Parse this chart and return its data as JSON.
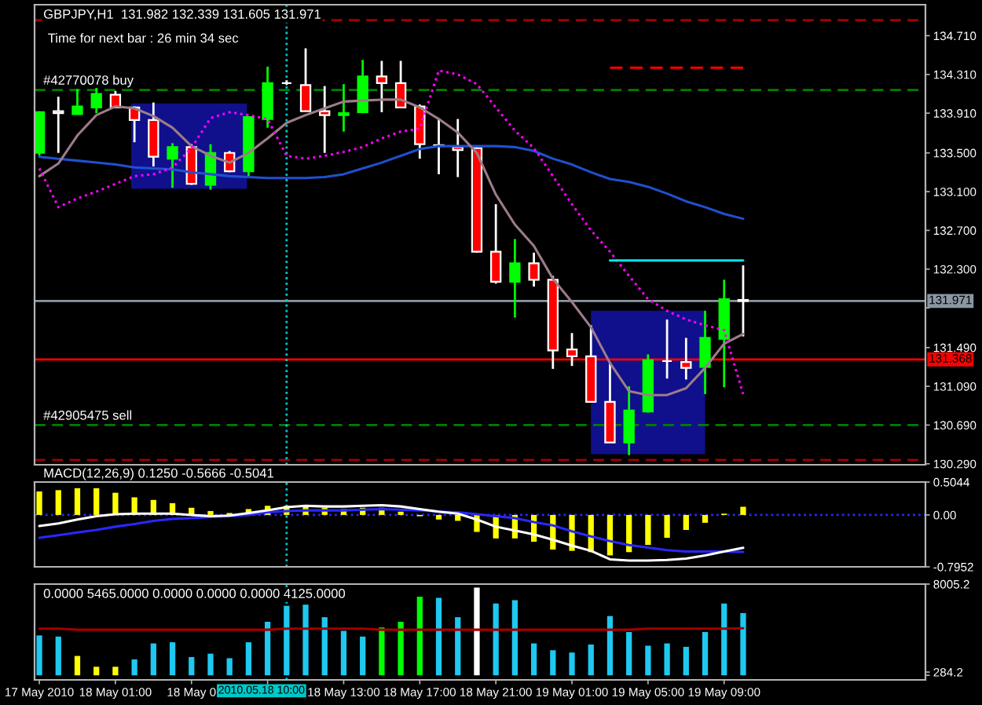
{
  "chart_data": [
    {
      "type": "candlestick",
      "title": "GBPJPY,H1  131.982 132.339 131.605 131.971",
      "subtitle": "Time for next bar : 26 min 34 sec",
      "x": [
        "2010-05-17T21:00",
        "2010-05-17T22:00",
        "2010-05-17T23:00",
        "2010-05-18T00:00",
        "2010-05-18T01:00",
        "2010-05-18T02:00",
        "2010-05-18T03:00",
        "2010-05-18T04:00",
        "2010-05-18T05:00",
        "2010-05-18T06:00",
        "2010-05-18T07:00",
        "2010-05-18T08:00",
        "2010-05-18T09:00",
        "2010-05-18T10:00",
        "2010-05-18T11:00",
        "2010-05-18T12:00",
        "2010-05-18T13:00",
        "2010-05-18T14:00",
        "2010-05-18T15:00",
        "2010-05-18T16:00",
        "2010-05-18T17:00",
        "2010-05-18T18:00",
        "2010-05-18T19:00",
        "2010-05-18T20:00",
        "2010-05-18T21:00",
        "2010-05-18T22:00",
        "2010-05-18T23:00",
        "2010-05-19T00:00",
        "2010-05-19T01:00",
        "2010-05-19T02:00",
        "2010-05-19T03:00",
        "2010-05-19T04:00",
        "2010-05-19T05:00",
        "2010-05-19T06:00",
        "2010-05-19T07:00",
        "2010-05-19T08:00",
        "2010-05-19T09:00",
        "2010-05-19T10:00"
      ],
      "ohlc": [
        [
          133.5,
          133.93,
          133.47,
          133.92
        ],
        [
          133.93,
          134.08,
          133.5,
          133.91
        ],
        [
          133.9,
          134.16,
          133.9,
          133.98
        ],
        [
          133.97,
          134.17,
          133.91,
          134.11
        ],
        [
          134.1,
          134.14,
          133.96,
          133.97
        ],
        [
          133.97,
          133.98,
          133.61,
          133.84
        ],
        [
          133.84,
          134.02,
          133.36,
          133.46
        ],
        [
          133.44,
          133.6,
          133.14,
          133.56
        ],
        [
          133.56,
          133.59,
          133.17,
          133.18
        ],
        [
          133.17,
          133.59,
          133.12,
          133.5
        ],
        [
          133.5,
          133.52,
          133.3,
          133.31
        ],
        [
          133.31,
          133.88,
          133.26,
          133.87
        ],
        [
          133.85,
          134.39,
          133.76,
          134.22
        ],
        [
          134.22,
          134.25,
          134.2,
          134.22
        ],
        [
          134.2,
          134.58,
          133.93,
          133.93
        ],
        [
          133.93,
          134.19,
          133.5,
          133.89
        ],
        [
          133.89,
          134.21,
          133.72,
          133.91
        ],
        [
          133.92,
          134.46,
          133.91,
          134.29
        ],
        [
          134.29,
          134.45,
          133.92,
          134.22
        ],
        [
          134.22,
          134.45,
          133.96,
          133.97
        ],
        [
          133.98,
          134.0,
          133.44,
          133.59
        ],
        [
          133.58,
          133.85,
          133.28,
          133.57
        ],
        [
          133.56,
          133.85,
          133.25,
          133.53
        ],
        [
          133.55,
          133.57,
          132.47,
          132.48
        ],
        [
          132.48,
          132.97,
          132.15,
          132.17
        ],
        [
          132.17,
          132.61,
          131.8,
          132.36
        ],
        [
          132.36,
          132.47,
          132.12,
          132.19
        ],
        [
          132.19,
          132.23,
          131.27,
          131.46
        ],
        [
          131.47,
          131.64,
          131.3,
          131.4
        ],
        [
          131.4,
          131.72,
          130.93,
          130.93
        ],
        [
          130.93,
          131.34,
          130.51,
          130.51
        ],
        [
          130.51,
          131.09,
          130.38,
          130.84
        ],
        [
          130.83,
          131.42,
          130.82,
          131.36
        ],
        [
          131.35,
          131.78,
          131.17,
          131.35
        ],
        [
          131.34,
          131.59,
          131.16,
          131.28
        ],
        [
          131.29,
          131.87,
          131.01,
          131.59
        ],
        [
          131.58,
          132.19,
          131.08,
          131.99
        ],
        [
          131.982,
          132.339,
          131.605,
          131.971
        ]
      ],
      "colors": [
        "#00ff00",
        "#ff0000",
        "#00ff00",
        "#00ff00",
        "#ff0000",
        "#ff0000",
        "#ff0000",
        "#00ff00",
        "#ff0000",
        "#00ff00",
        "#ff0000",
        "#00ff00",
        "#00ff00",
        "#ffffff",
        "#ff0000",
        "#ff0000",
        "#00ff00",
        "#00ff00",
        "#ff0000",
        "#ff0000",
        "#ff0000",
        "#ffffff",
        "#ff0000",
        "#ff0000",
        "#ff0000",
        "#00ff00",
        "#ff0000",
        "#ff0000",
        "#ff0000",
        "#ff0000",
        "#ff0000",
        "#00ff00",
        "#00ff00",
        "#ffffff",
        "#ff0000",
        "#00ff00",
        "#00ff00",
        "#ffffff"
      ],
      "series": [
        {
          "type": "area",
          "x": [
            "2010-05-18T01:50",
            "2010-05-18T07:55"
          ],
          "values": [
            null,
            null
          ],
          "lower": [
            133.13,
            133.13
          ],
          "upper": [
            134.01,
            134.01
          ],
          "color": "#10108c"
        },
        {
          "type": "area",
          "x": [
            "2010-05-19T02:00",
            "2010-05-19T08:00"
          ],
          "values": [
            null,
            null
          ],
          "lower": [
            130.39,
            130.39
          ],
          "upper": [
            131.87,
            131.87
          ],
          "color": "#10108c"
        },
        {
          "type": "line",
          "color": "#2050d0",
          "values": [
            133.46,
            133.44,
            133.42,
            133.4,
            133.38,
            133.35,
            133.34,
            133.33,
            133.3,
            133.28,
            133.26,
            133.25,
            133.24,
            133.24,
            133.24,
            133.25,
            133.28,
            133.34,
            133.4,
            133.47,
            133.54,
            133.57,
            133.57,
            133.57,
            133.57,
            133.56,
            133.52,
            133.44,
            133.38,
            133.3,
            133.23,
            133.2,
            133.15,
            133.08,
            133.0,
            132.94,
            132.87,
            132.82
          ]
        },
        {
          "type": "line",
          "color": "#9c7c88",
          "values": [
            133.26,
            133.39,
            133.68,
            133.89,
            133.98,
            133.96,
            133.88,
            133.76,
            133.57,
            133.47,
            133.4,
            133.5,
            133.65,
            133.81,
            133.89,
            133.96,
            134.03,
            134.04,
            134.05,
            134.05,
            133.97,
            133.85,
            133.71,
            133.5,
            133.07,
            132.76,
            132.54,
            132.2,
            131.96,
            131.7,
            131.33,
            131.04,
            131.0,
            131.0,
            131.07,
            131.28,
            131.53,
            131.63
          ]
        },
        {
          "type": "line",
          "color": "#ff00ff",
          "line_style": "dotted",
          "values": [
            133.34,
            132.94,
            133.03,
            133.1,
            133.18,
            133.26,
            133.28,
            133.35,
            133.55,
            133.86,
            133.92,
            133.89,
            133.85,
            133.47,
            133.44,
            133.47,
            133.51,
            133.56,
            133.65,
            133.72,
            133.75,
            134.35,
            134.31,
            134.21,
            133.97,
            133.73,
            133.55,
            133.26,
            132.97,
            132.7,
            132.48,
            132.23,
            131.99,
            131.87,
            131.78,
            131.72,
            131.67,
            131.01
          ]
        },
        {
          "type": "line",
          "x": [
            "2010-05-19T03:00",
            "2010-05-19T10:00"
          ],
          "values": [
            134.38,
            134.38
          ],
          "color": "#ff0000",
          "line_style": "dashed"
        },
        {
          "type": "line",
          "x": [
            "2010-05-19T03:00",
            "2010-05-19T10:00"
          ],
          "values": [
            132.39,
            132.39
          ],
          "color": "#00e5ee"
        }
      ],
      "xlim": [
        "2010-05-17T20:45",
        "2010-05-19T19:35"
      ],
      "ylim": [
        130.28,
        135.03
      ],
      "yticks": [
        {
          "value": 134.71,
          "label": "134.710"
        },
        {
          "value": 134.31,
          "label": "134.310"
        },
        {
          "value": 133.91,
          "label": "133.910"
        },
        {
          "value": 133.5,
          "label": "133.500"
        },
        {
          "value": 133.1,
          "label": "133.100"
        },
        {
          "value": 132.7,
          "label": "132.700"
        },
        {
          "value": 132.3,
          "label": "132.300"
        },
        {
          "value": 131.9,
          "label": null
        },
        {
          "value": 131.49,
          "label": "131.490"
        },
        {
          "value": 131.09,
          "label": "131.090"
        },
        {
          "value": 130.69,
          "label": "130.690"
        },
        {
          "value": 130.29,
          "label": "130.290"
        }
      ],
      "ref_lines": [
        {
          "axis": "y",
          "value": 134.87,
          "color": "#a00000",
          "line_style": "dashed"
        },
        {
          "axis": "y",
          "value": 134.15,
          "label": "#42770078 buy",
          "color": "#008000",
          "line_style": "dashed"
        },
        {
          "axis": "y",
          "value": 131.971,
          "label": "131.971",
          "color": "#8a96a3"
        },
        {
          "axis": "y",
          "value": 131.368,
          "label": "131.368",
          "color": "#ff0000"
        },
        {
          "axis": "y",
          "value": 130.69,
          "label": "#42905475 sell",
          "color": "#008000",
          "line_style": "dashed"
        },
        {
          "axis": "y",
          "value": 130.33,
          "color": "#a00000",
          "line_style": "dashed"
        },
        {
          "axis": "x",
          "value": "2010-05-18T10:00",
          "color": "#00c8c8",
          "line_style": "dotted"
        }
      ],
      "tick_labels": "y"
    },
    {
      "type": "bar",
      "title": "MACD(12,26,9) 0.1250 -0.5666 -0.5041",
      "x": [
        "2010-05-17T21:00",
        "2010-05-17T22:00",
        "2010-05-17T23:00",
        "2010-05-18T00:00",
        "2010-05-18T01:00",
        "2010-05-18T02:00",
        "2010-05-18T03:00",
        "2010-05-18T04:00",
        "2010-05-18T05:00",
        "2010-05-18T06:00",
        "2010-05-18T07:00",
        "2010-05-18T08:00",
        "2010-05-18T09:00",
        "2010-05-18T10:00",
        "2010-05-18T11:00",
        "2010-05-18T12:00",
        "2010-05-18T13:00",
        "2010-05-18T14:00",
        "2010-05-18T15:00",
        "2010-05-18T16:00",
        "2010-05-18T17:00",
        "2010-05-18T18:00",
        "2010-05-18T19:00",
        "2010-05-18T20:00",
        "2010-05-18T21:00",
        "2010-05-18T22:00",
        "2010-05-18T23:00",
        "2010-05-19T00:00",
        "2010-05-19T01:00",
        "2010-05-19T02:00",
        "2010-05-19T03:00",
        "2010-05-19T04:00",
        "2010-05-19T05:00",
        "2010-05-19T06:00",
        "2010-05-19T07:00",
        "2010-05-19T08:00",
        "2010-05-19T09:00",
        "2010-05-19T10:00"
      ],
      "series": [
        {
          "type": "bar",
          "color": "#ffff00",
          "values": [
            0.36,
            0.38,
            0.41,
            0.41,
            0.34,
            0.27,
            0.23,
            0.18,
            0.11,
            0.06,
            0.03,
            0.09,
            0.14,
            0.14,
            0.14,
            0.11,
            0.09,
            0.11,
            0.11,
            0.05,
            -0.02,
            -0.07,
            -0.09,
            -0.26,
            -0.36,
            -0.36,
            -0.41,
            -0.53,
            -0.55,
            -0.57,
            -0.62,
            -0.57,
            -0.46,
            -0.35,
            -0.23,
            -0.12,
            0.02,
            0.125
          ]
        },
        {
          "type": "line",
          "color": "#2828ff",
          "values": [
            -0.35,
            -0.31,
            -0.27,
            -0.23,
            -0.18,
            -0.14,
            -0.09,
            -0.06,
            -0.05,
            -0.03,
            -0.02,
            0.0,
            0.04,
            0.06,
            0.07,
            0.07,
            0.07,
            0.08,
            0.09,
            0.08,
            0.07,
            0.05,
            0.04,
            0.01,
            -0.02,
            -0.05,
            -0.11,
            -0.16,
            -0.25,
            -0.33,
            -0.4,
            -0.46,
            -0.5,
            -0.54,
            -0.56,
            -0.56,
            -0.56,
            -0.5666
          ]
        },
        {
          "type": "line",
          "color": "#ffffff",
          "values": [
            -0.17,
            -0.13,
            -0.07,
            -0.02,
            0.01,
            0.02,
            0.02,
            0.02,
            0.0,
            -0.02,
            -0.01,
            0.03,
            0.07,
            0.12,
            0.14,
            0.13,
            0.13,
            0.14,
            0.15,
            0.13,
            0.09,
            0.05,
            0.02,
            -0.07,
            -0.18,
            -0.24,
            -0.3,
            -0.38,
            -0.47,
            -0.55,
            -0.68,
            -0.7,
            -0.7,
            -0.69,
            -0.67,
            -0.62,
            -0.56,
            -0.5041
          ]
        }
      ],
      "xlim": [
        "2010-05-17T20:45",
        "2010-05-19T19:35"
      ],
      "ylim": [
        -0.7952,
        0.5044
      ],
      "yticks": [
        0.5044,
        {
          "value": 0,
          "label": "0.00"
        },
        -0.7952
      ],
      "ref_lines": [
        {
          "axis": "y",
          "value": 0,
          "color": "#2828ff",
          "line_style": "dotted"
        },
        {
          "axis": "x",
          "value": "2010-05-18T10:00",
          "color": "#00c8c8",
          "line_style": "dotted"
        }
      ],
      "tick_labels": "y"
    },
    {
      "type": "bar",
      "title": "0.0000 5465.0000 0.0000 0.0000 0.0000 4125.0000",
      "x": [
        "2010-05-17T21:00",
        "2010-05-17T22:00",
        "2010-05-17T23:00",
        "2010-05-18T00:00",
        "2010-05-18T01:00",
        "2010-05-18T02:00",
        "2010-05-18T03:00",
        "2010-05-18T04:00",
        "2010-05-18T05:00",
        "2010-05-18T06:00",
        "2010-05-18T07:00",
        "2010-05-18T08:00",
        "2010-05-18T09:00",
        "2010-05-18T10:00",
        "2010-05-18T11:00",
        "2010-05-18T12:00",
        "2010-05-18T13:00",
        "2010-05-18T14:00",
        "2010-05-18T15:00",
        "2010-05-18T16:00",
        "2010-05-18T17:00",
        "2010-05-18T18:00",
        "2010-05-18T19:00",
        "2010-05-18T20:00",
        "2010-05-18T21:00",
        "2010-05-18T22:00",
        "2010-05-18T23:00",
        "2010-05-19T00:00",
        "2010-05-19T01:00",
        "2010-05-19T02:00",
        "2010-05-19T03:00",
        "2010-05-19T04:00",
        "2010-05-19T05:00",
        "2010-05-19T06:00",
        "2010-05-19T07:00",
        "2010-05-19T08:00",
        "2010-05-19T09:00",
        "2010-05-19T10:00"
      ],
      "series": [
        {
          "type": "bar",
          "colors": [
            "#1ec8f0",
            "#1ec8f0",
            "#ffff00",
            "#ffff00",
            "#ffff00",
            "#1ec8f0",
            "#1ec8f0",
            "#1ec8f0",
            "#1ec8f0",
            "#1ec8f0",
            "#1ec8f0",
            "#1ec8f0",
            "#1ec8f0",
            "#1ec8f0",
            "#1ec8f0",
            "#1ec8f0",
            "#1ec8f0",
            "#1ec8f0",
            "#00ff00",
            "#00ff00",
            "#00ff00",
            "#1ec8f0",
            "#1ec8f0",
            "#ffffff",
            "#1ec8f0",
            "#1ec8f0",
            "#1ec8f0",
            "#1ec8f0",
            "#1ec8f0",
            "#1ec8f0",
            "#1ec8f0",
            "#1ec8f0",
            "#1ec8f0",
            "#1ec8f0",
            "#1ec8f0",
            "#1ec8f0",
            "#1ec8f0",
            "#1ec8f0"
          ],
          "values": [
            3500,
            3400,
            1700,
            750,
            750,
            1400,
            2800,
            2900,
            1600,
            1900,
            1500,
            2900,
            4700,
            6100,
            6200,
            5100,
            3900,
            3400,
            4200,
            4700,
            6900,
            6800,
            5100,
            7700,
            6300,
            6600,
            2800,
            2200,
            2000,
            2700,
            5200,
            3800,
            2600,
            2800,
            2500,
            3800,
            6300,
            5465
          ]
        },
        {
          "type": "line",
          "color": "#a00000",
          "values": [
            4100,
            4100,
            4000,
            4000,
            4000,
            4000,
            4000,
            4000,
            4000,
            4000,
            4000,
            4000,
            4000,
            4100,
            4100,
            4100,
            4100,
            4100,
            4000,
            4000,
            4000,
            4000,
            4000,
            4000,
            4000,
            4000,
            4000,
            4000,
            4000,
            4000,
            4000,
            4000,
            4100,
            4100,
            4100,
            4100,
            4100,
            4125
          ]
        }
      ],
      "xlim": [
        "2010-05-17T20:45",
        "2010-05-19T19:35"
      ],
      "ylim": [
        -400,
        8005.2
      ],
      "xticks": [
        {
          "value": "2010-05-17T21:00",
          "label": "17 May 2010"
        },
        {
          "value": "2010-05-18T01:00",
          "label": "18 May 01:00"
        },
        {
          "value": "2010-05-18T05:00",
          "label": "18 May 0"
        },
        {
          "value": "2010-05-18T09:00",
          "label": null
        },
        {
          "value": "2010-05-18T13:00",
          "label": "18 May 13:00"
        },
        {
          "value": "2010-05-18T17:00",
          "label": "18 May 17:00"
        },
        {
          "value": "2010-05-18T21:00",
          "label": "18 May 21:00"
        },
        {
          "value": "2010-05-19T01:00",
          "label": "19 May 01:00"
        },
        {
          "value": "2010-05-19T05:00",
          "label": "19 May 05:00"
        },
        {
          "value": "2010-05-19T09:00",
          "label": "19 May 09:00"
        }
      ],
      "yticks": [
        8005.2,
        284.2,
        {
          "value": 0,
          "label": null
        }
      ],
      "ref_lines": [
        {
          "axis": "x",
          "value": "2010-05-18T10:00",
          "label": "2010.05.18 10:00",
          "color": "#00c8c8",
          "line_style": "dotted"
        }
      ]
    }
  ]
}
